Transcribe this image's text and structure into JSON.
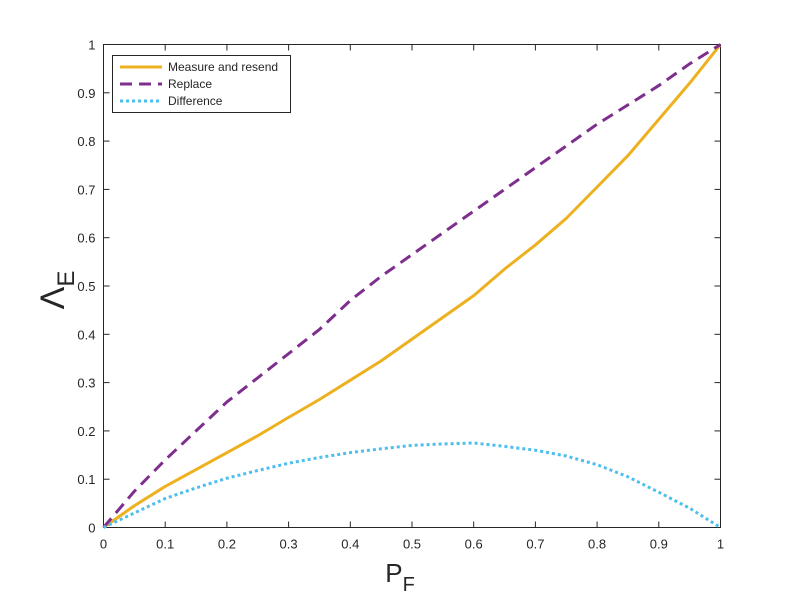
{
  "chart_data": {
    "type": "line",
    "title": "",
    "xlabel_main": "P",
    "xlabel_sub": "F",
    "ylabel_main": "Λ",
    "ylabel_sub": "E",
    "xlim": [
      0,
      1
    ],
    "ylim": [
      0,
      1
    ],
    "xticks": [
      "0",
      "0.1",
      "0.2",
      "0.3",
      "0.4",
      "0.5",
      "0.6",
      "0.7",
      "0.8",
      "0.9",
      "1"
    ],
    "yticks": [
      "0",
      "0.1",
      "0.2",
      "0.3",
      "0.4",
      "0.5",
      "0.6",
      "0.7",
      "0.8",
      "0.9",
      "1"
    ],
    "grid": false,
    "legend_position": "top-left",
    "x": [
      0,
      0.05,
      0.1,
      0.15,
      0.2,
      0.25,
      0.3,
      0.35,
      0.4,
      0.45,
      0.5,
      0.55,
      0.6,
      0.65,
      0.7,
      0.75,
      0.8,
      0.85,
      0.9,
      0.95,
      1.0
    ],
    "series": [
      {
        "name": "Measure and resend",
        "color": "#EDB120",
        "style": "solid",
        "values": [
          0,
          0.045,
          0.085,
          0.12,
          0.155,
          0.19,
          0.228,
          0.265,
          0.305,
          0.345,
          0.39,
          0.435,
          0.48,
          0.535,
          0.585,
          0.64,
          0.705,
          0.77,
          0.845,
          0.92,
          1.0
        ]
      },
      {
        "name": "Replace",
        "color": "#7E2F8E",
        "style": "dashed",
        "values": [
          0,
          0.075,
          0.14,
          0.2,
          0.26,
          0.31,
          0.36,
          0.41,
          0.47,
          0.52,
          0.565,
          0.61,
          0.655,
          0.7,
          0.745,
          0.79,
          0.835,
          0.875,
          0.915,
          0.96,
          1.0
        ]
      },
      {
        "name": "Difference",
        "color": "#4DBEEE",
        "style": "dotted",
        "values": [
          0,
          0.03,
          0.06,
          0.082,
          0.102,
          0.118,
          0.133,
          0.145,
          0.155,
          0.163,
          0.17,
          0.173,
          0.175,
          0.168,
          0.16,
          0.148,
          0.13,
          0.105,
          0.073,
          0.04,
          0.0
        ]
      }
    ]
  }
}
